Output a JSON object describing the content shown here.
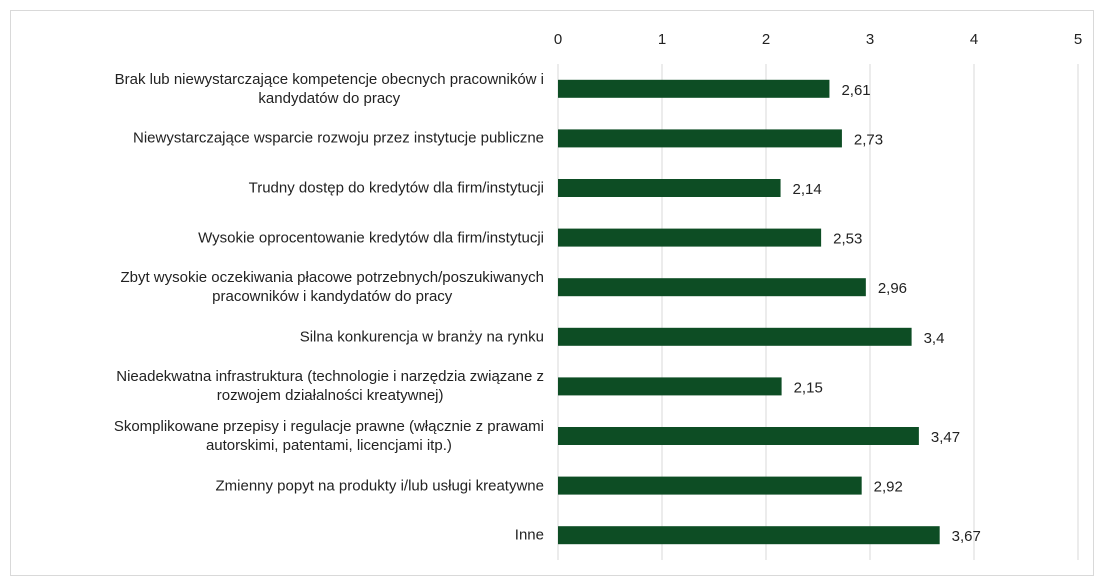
{
  "chart_data": {
    "type": "bar",
    "orientation": "horizontal",
    "categories": [
      "Brak lub niewystarczające kompetencje obecnych pracowników i\nkandydatów do pracy",
      "Niewystarczające wsparcie rozwoju przez instytucje publiczne",
      "Trudny dostęp do kredytów dla firm/instytucji",
      "Wysokie oprocentowanie kredytów dla firm/instytucji",
      "Zbyt wysokie oczekiwania płacowe potrzebnych/poszukiwanych\npracowników i kandydatów do pracy",
      "Silna konkurencja w branży na rynku",
      "Nieadekwatna infrastruktura (technologie i narzędzia związane z\nrozwojem działalności kreatywnej)",
      "Skomplikowane przepisy i regulacje prawne (włącznie z prawami\nautorskimi, patentami, licencjami itp.)",
      "Zmienny popyt na produkty i/lub usługi kreatywne",
      "Inne"
    ],
    "values": [
      2.61,
      2.73,
      2.14,
      2.53,
      2.96,
      3.4,
      2.15,
      3.47,
      2.92,
      3.67
    ],
    "value_labels": [
      "2,61",
      "2,73",
      "2,14",
      "2,53",
      "2,96",
      "3,4",
      "2,15",
      "3,47",
      "2,92",
      "3,67"
    ],
    "color": "#0d4d24",
    "xlim": [
      0,
      5
    ],
    "xticks": [
      0,
      1,
      2,
      3,
      4,
      5
    ],
    "grid": true
  }
}
